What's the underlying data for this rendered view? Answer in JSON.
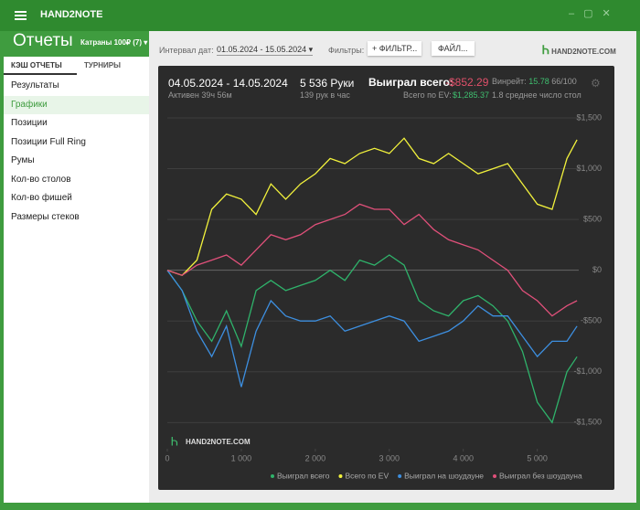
{
  "window_title": "HAND2NOTE",
  "header": {
    "title": "Отчеты",
    "profile": "Катраны 100₽ (7)"
  },
  "tabs": [
    "КЭШ ОТЧЕТЫ",
    "ТУРНИРЫ"
  ],
  "menu": [
    "Результаты",
    "Графики",
    "Позиции",
    "Позиции Full Ring",
    "Румы",
    "Кол-во столов",
    "Кол-во фишей",
    "Размеры стеков"
  ],
  "toolbar": {
    "interval_label": "Интервал дат:",
    "interval": "01.05.2024 - 15.05.2024",
    "filters_label": "Фильтры:",
    "filter_button": "ФИЛЬТР...",
    "file_button": "ФАЙЛ...",
    "logo": "HAND2NOTE.COM"
  },
  "stats": {
    "dates": "04.05.2024 - 14.05.2024",
    "active": "Активен 39ч 56м",
    "hands": "5 536 Руки",
    "rate": "139 рук в час",
    "won_label": "Выиграл всего:",
    "won": "-$852.29",
    "ev_label": "Всего по EV:",
    "ev": "$1,285.37",
    "winrate_label": "Винрейт:",
    "winrate": "15.78",
    "winrate_hands": "66/100",
    "tables": "1.8 среднее число стол"
  },
  "chart_data": {
    "type": "line",
    "watermark": "HAND2NOTE.COM",
    "x": [
      0,
      200,
      400,
      600,
      800,
      1000,
      1200,
      1400,
      1600,
      1800,
      2000,
      2200,
      2400,
      2600,
      2800,
      3000,
      3200,
      3400,
      3600,
      3800,
      4000,
      4200,
      4400,
      4600,
      4800,
      5000,
      5200,
      5400,
      5536
    ],
    "xlim": [
      0,
      5560
    ],
    "xticks": [
      0,
      {
        "value": 1000,
        "label": "1 000"
      },
      {
        "value": 2000,
        "label": "2 000"
      },
      {
        "value": 3000,
        "label": "3 000"
      },
      {
        "value": 4000,
        "label": "4 000"
      },
      {
        "value": 5000,
        "label": "5 000"
      }
    ],
    "ylim": [
      -1650,
      1500
    ],
    "yticks": [
      {
        "value": 1500,
        "label": "$1,500"
      },
      {
        "value": 1000,
        "label": "$1,000"
      },
      {
        "value": 500,
        "label": "$500"
      },
      {
        "value": 0,
        "label": "$0"
      },
      {
        "value": -500,
        "label": "-$500"
      },
      {
        "value": -1000,
        "label": "-$1,000"
      },
      {
        "value": -1500,
        "label": "-$1,500"
      }
    ],
    "grid": true,
    "series": [
      {
        "name": "Выиграл всего",
        "color": "#2fb36b",
        "values": [
          0,
          -200,
          -500,
          -700,
          -400,
          -750,
          -200,
          -100,
          -200,
          -150,
          -100,
          0,
          -100,
          100,
          50,
          150,
          50,
          -300,
          -400,
          -450,
          -300,
          -250,
          -350,
          -500,
          -800,
          -1300,
          -1500,
          -1000,
          -852
        ]
      },
      {
        "name": "Всего по EV",
        "color": "#f2f23c",
        "values": [
          0,
          -50,
          100,
          600,
          750,
          700,
          550,
          850,
          700,
          850,
          950,
          1100,
          1050,
          1150,
          1200,
          1150,
          1300,
          1100,
          1050,
          1150,
          1050,
          950,
          1000,
          1050,
          850,
          650,
          600,
          1100,
          1285
        ]
      },
      {
        "name": "Выиграл на шоудауне",
        "color": "#3d8fe0",
        "values": [
          0,
          -200,
          -600,
          -850,
          -550,
          -1150,
          -600,
          -300,
          -450,
          -500,
          -500,
          -450,
          -600,
          -550,
          -500,
          -450,
          -500,
          -700,
          -650,
          -600,
          -500,
          -350,
          -450,
          -450,
          -650,
          -850,
          -700,
          -700,
          -550
        ]
      },
      {
        "name": "Выиграл без шоудауна",
        "color": "#e0507a",
        "values": [
          0,
          -50,
          50,
          100,
          150,
          50,
          200,
          350,
          300,
          350,
          450,
          500,
          550,
          650,
          600,
          600,
          450,
          550,
          400,
          300,
          250,
          200,
          100,
          0,
          -200,
          -300,
          -450,
          -350,
          -300
        ]
      }
    ]
  }
}
